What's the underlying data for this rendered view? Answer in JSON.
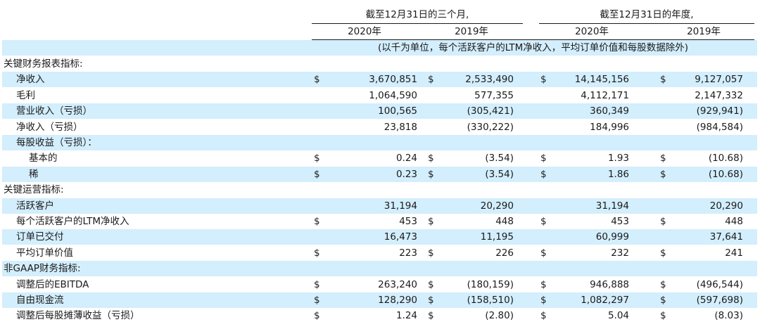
{
  "header": {
    "group_q": "截至12月31日的三个月,",
    "group_y": "截至12月31日的年度,",
    "years": [
      "2020年",
      "2019年",
      "2020年",
      "2019年"
    ],
    "unit_note": "(以千为单位，每个活跃客户的LTM净收入，平均订单价值和每股数据除外)"
  },
  "rows": [
    {
      "label": "关键财务报表指标:",
      "indent": 0,
      "band": false,
      "cells": [
        "",
        "",
        "",
        "",
        "",
        "",
        "",
        ""
      ]
    },
    {
      "label": "净收入",
      "indent": 1,
      "band": true,
      "cells": [
        "$",
        "3,670,851",
        "$",
        "2,533,490",
        "$",
        "14,145,156",
        "$",
        "9,127,057"
      ]
    },
    {
      "label": "毛利",
      "indent": 1,
      "band": false,
      "cells": [
        "",
        "1,064,590",
        "",
        "577,355",
        "",
        "4,112,171",
        "",
        "2,147,332"
      ]
    },
    {
      "label": "营业收入（亏损）",
      "indent": 1,
      "band": true,
      "cells": [
        "",
        "100,565",
        "",
        "(305,421)",
        "",
        "360,349",
        "",
        "(929,941)"
      ]
    },
    {
      "label": "净收入（亏损）",
      "indent": 1,
      "band": false,
      "cells": [
        "",
        "23,818",
        "",
        "(330,222)",
        "",
        "184,996",
        "",
        "(984,584)"
      ]
    },
    {
      "label": "每股收益（亏损）：",
      "indent": 1,
      "band": true,
      "cells": [
        "",
        "",
        "",
        "",
        "",
        "",
        "",
        ""
      ]
    },
    {
      "label": "基本的",
      "indent": 2,
      "band": false,
      "cells": [
        "$",
        "0.24",
        "$",
        "(3.54)",
        "$",
        "1.93",
        "$",
        "(10.68)"
      ]
    },
    {
      "label": "稀",
      "indent": 2,
      "band": true,
      "cells": [
        "$",
        "0.23",
        "$",
        "(3.54)",
        "$",
        "1.86",
        "$",
        "(10.68)"
      ]
    },
    {
      "label": "关键运营指标:",
      "indent": 0,
      "band": false,
      "cells": [
        "",
        "",
        "",
        "",
        "",
        "",
        "",
        ""
      ]
    },
    {
      "label": "活跃客户",
      "indent": 1,
      "band": true,
      "cells": [
        "",
        "31,194",
        "",
        "20,290",
        "",
        "31,194",
        "",
        "20,290"
      ]
    },
    {
      "label": "每个活跃客户的LTM净收入",
      "indent": 1,
      "band": false,
      "cells": [
        "$",
        "453",
        "$",
        "448",
        "$",
        "453",
        "$",
        "448"
      ]
    },
    {
      "label": "订单已交付",
      "indent": 1,
      "band": true,
      "cells": [
        "",
        "16,473",
        "",
        "11,195",
        "",
        "60,999",
        "",
        "37,641"
      ]
    },
    {
      "label": "平均订单价值",
      "indent": 1,
      "band": false,
      "cells": [
        "$",
        "223",
        "$",
        "226",
        "$",
        "232",
        "$",
        "241"
      ]
    },
    {
      "label": "非GAAP财务指标:",
      "indent": 0,
      "band": true,
      "cells": [
        "",
        "",
        "",
        "",
        "",
        "",
        "",
        ""
      ]
    },
    {
      "label": "调整后的EBITDA",
      "indent": 1,
      "band": false,
      "cells": [
        "$",
        "263,240",
        "$",
        "(180,159)",
        "$",
        "946,888",
        "$",
        "(496,544)"
      ]
    },
    {
      "label": "自由现金流",
      "indent": 1,
      "band": true,
      "cells": [
        "$",
        "128,290",
        "$",
        "(158,510)",
        "$",
        "1,082,297",
        "$",
        "(597,698)"
      ]
    },
    {
      "label": "调整后每股摊薄收益（亏损）",
      "indent": 1,
      "band": false,
      "cells": [
        "$",
        "1.24",
        "$",
        "(2.80)",
        "$",
        "5.04",
        "$",
        "(8.03)"
      ]
    }
  ]
}
